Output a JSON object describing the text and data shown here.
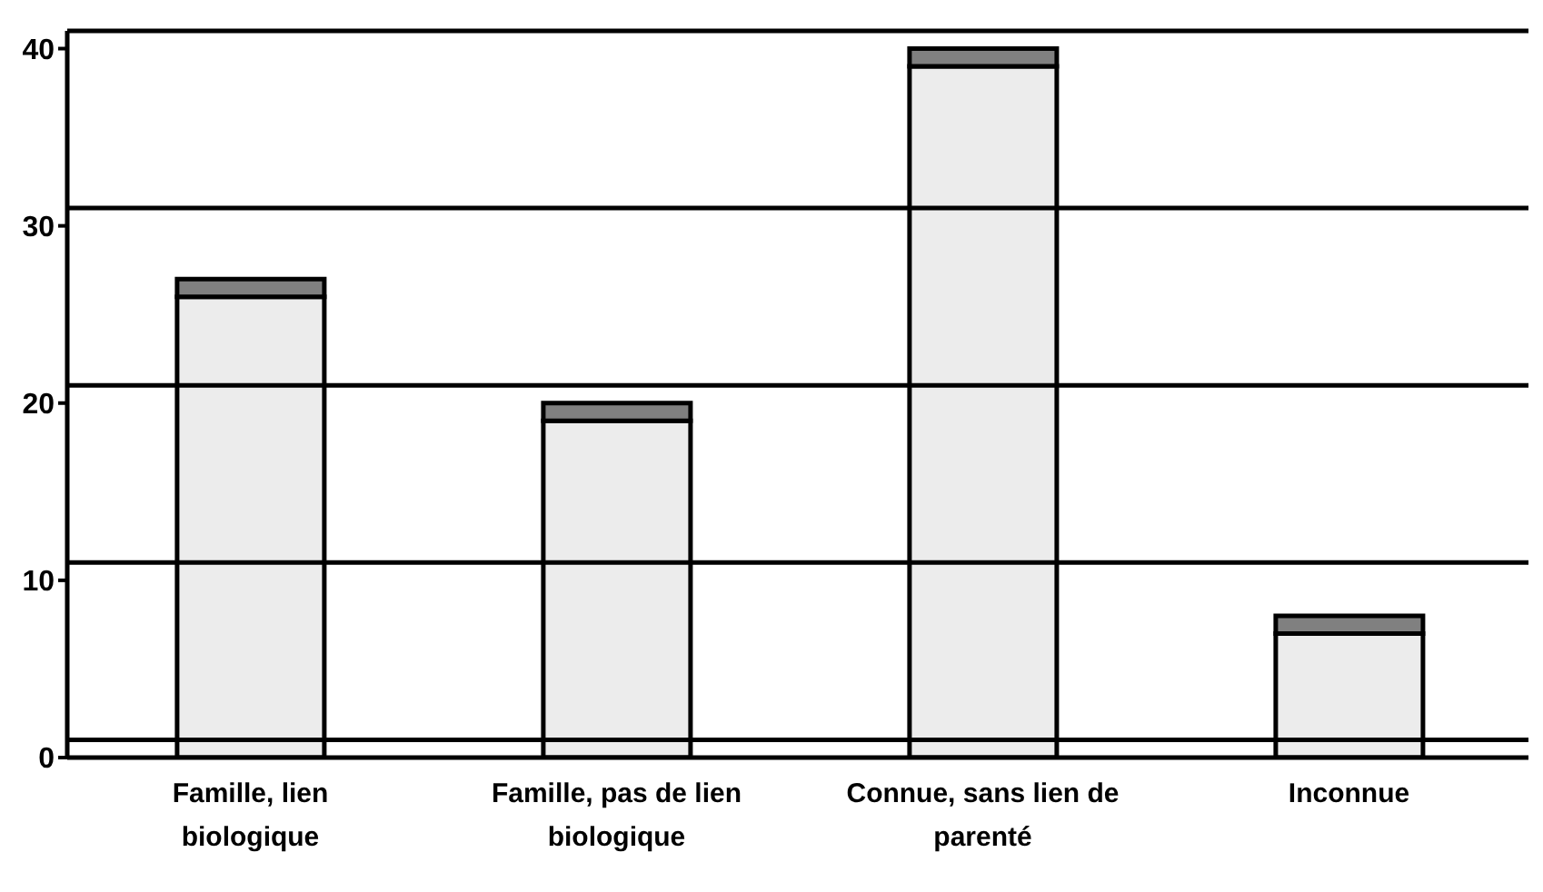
{
  "chart_data": {
    "type": "bar",
    "stacked": true,
    "categories": [
      "Famille, lien biologique",
      "Famille, pas de lien biologique",
      "Connue, sans lien de parenté",
      "Inconnue"
    ],
    "series": [
      {
        "color": "#ececec",
        "values": [
          26,
          19,
          39,
          7
        ]
      },
      {
        "color": "#808080",
        "values": [
          1,
          1,
          1,
          1
        ]
      }
    ],
    "ylim": [
      0,
      41
    ],
    "yticks": [
      0,
      10,
      20,
      30,
      40
    ],
    "grid": false,
    "legend": false,
    "ref_lines": [
      {
        "axis": "y",
        "value": 1
      },
      {
        "axis": "y",
        "value": 11
      },
      {
        "axis": "y",
        "value": 21
      },
      {
        "axis": "y",
        "value": 31
      }
    ]
  }
}
